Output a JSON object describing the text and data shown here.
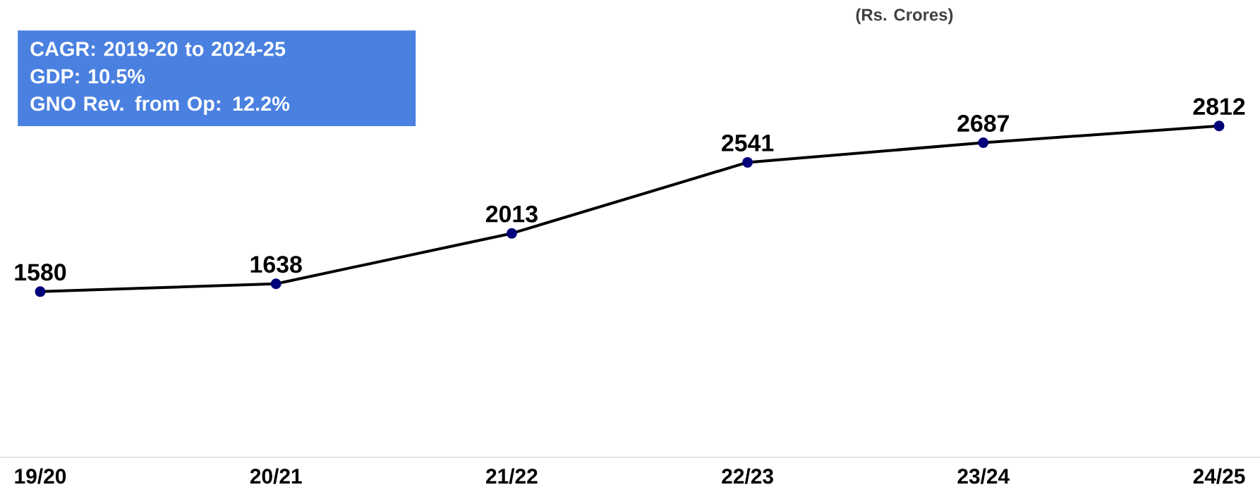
{
  "chart_data": {
    "type": "line",
    "subtitle": "(Rs. Crores)",
    "categories": [
      "19/20",
      "20/21",
      "21/22",
      "22/23",
      "23/24",
      "24/25"
    ],
    "series": [
      {
        "color": "#000000",
        "values": [
          1580,
          1638,
          2013,
          2541,
          2687,
          2812
        ]
      }
    ],
    "marker": "circle",
    "data_labels": true,
    "annotations": [
      "CAGR: 2019-20 to 2024-25",
      "GDP: 10.5%",
      "GNO Rev. from Op: 12.2%"
    ]
  }
}
